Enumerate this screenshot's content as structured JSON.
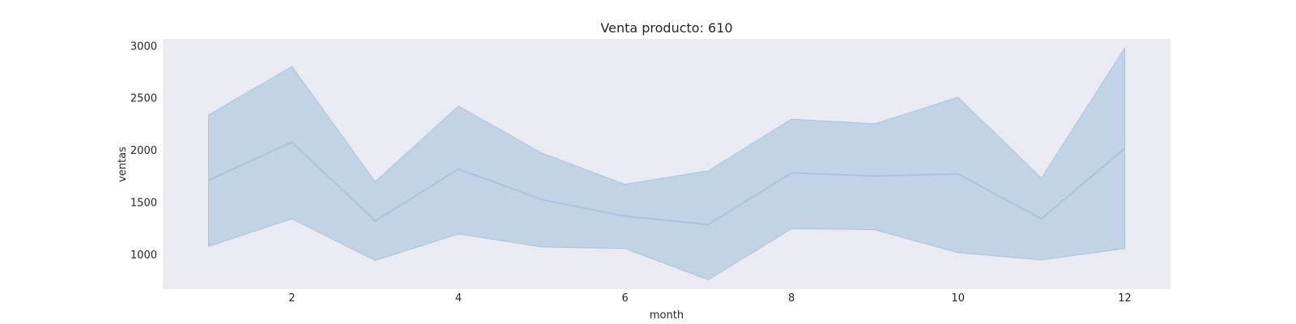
{
  "chart_data": {
    "type": "line",
    "title": "Venta producto: 610",
    "xlabel": "month",
    "ylabel": "ventas",
    "x": [
      1,
      2,
      3,
      4,
      5,
      6,
      7,
      8,
      9,
      10,
      11,
      12
    ],
    "series": [
      {
        "values": [
          1710,
          2075,
          1320,
          1815,
          1525,
          1365,
          1285,
          1780,
          1750,
          1770,
          1340,
          2015
        ],
        "ci_lower": [
          1075,
          1340,
          940,
          1195,
          1070,
          1055,
          755,
          1245,
          1235,
          1015,
          945,
          1055
        ],
        "ci_upper": [
          2335,
          2800,
          1695,
          2420,
          1970,
          1670,
          1800,
          2295,
          2250,
          2505,
          1730,
          2975
        ]
      }
    ],
    "x_ticks": [
      2,
      4,
      6,
      8,
      10,
      12
    ],
    "y_ticks": [
      1000,
      1500,
      2000,
      2500,
      3000
    ],
    "xlim": [
      0.45,
      12.55
    ],
    "ylim": [
      665,
      3065
    ],
    "grid": false,
    "colors": {
      "background": "#eaeaf2",
      "line": "#a9c3dd",
      "band": "#c2d3e5"
    }
  }
}
